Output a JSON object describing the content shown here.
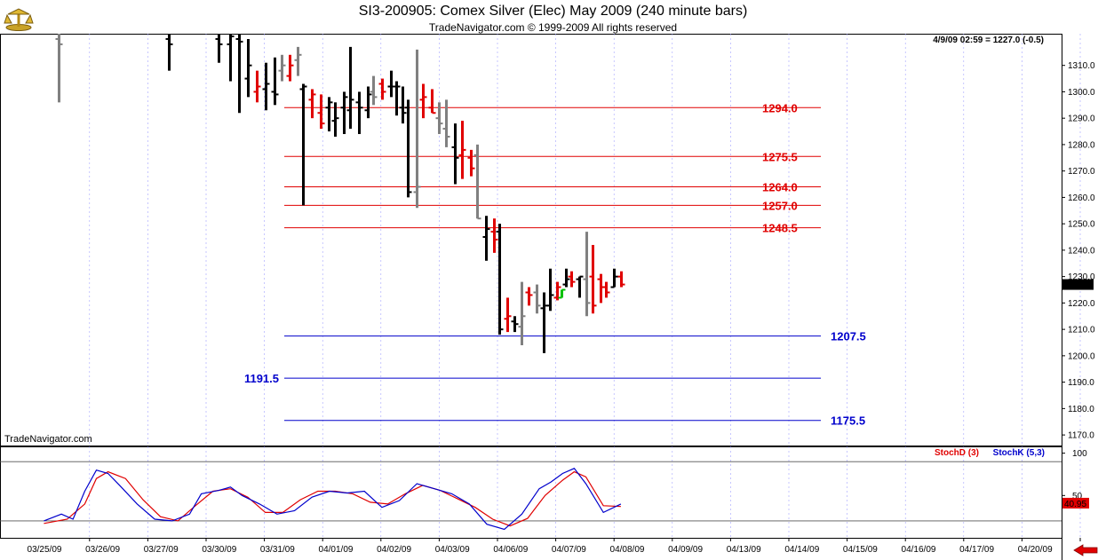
{
  "header": {
    "title": "SI3-200905:  Comex Silver (Elec) May 2009  (240 minute bars)",
    "copyright": "TradeNavigator.com © 1999-2009 All rights reserved",
    "quote": "4/9/09 02:59 = 1227.0 (-0.5)",
    "watermark": "TradeNavigator.com",
    "last_price": "1227.0"
  },
  "colors": {
    "up": "#000000",
    "down": "#e00000",
    "neutral": "#808080",
    "green": "#00c000",
    "resistance": "#e00000",
    "support": "#0000cc",
    "stochD": "#e00000",
    "stochK": "#0000cc"
  },
  "chart_data": [
    {
      "type": "bar",
      "subtype": "ohlc",
      "y_ticks": [
        "1170.0",
        "1180.0",
        "1190.0",
        "1200.0",
        "1210.0",
        "1220.0",
        "1230.0",
        "1240.0",
        "1250.0",
        "1260.0",
        "1270.0",
        "1280.0",
        "1290.0",
        "1300.0",
        "1310.0"
      ],
      "ylim": [
        1166,
        1322
      ],
      "x_labels": [
        "03/25/09",
        "03/26/09",
        "03/27/09",
        "03/30/09",
        "03/31/09",
        "04/01/09",
        "04/02/09",
        "04/03/09",
        "04/06/09",
        "04/07/09",
        "04/08/09",
        "04/09/09",
        "04/13/09",
        "04/14/09",
        "04/15/09",
        "04/16/09",
        "04/17/09",
        "04/20/09"
      ],
      "levels": [
        {
          "value": 1294.0,
          "label": "1294.0",
          "kind": "resistance"
        },
        {
          "value": 1275.5,
          "label": "1275.5",
          "kind": "resistance"
        },
        {
          "value": 1264.0,
          "label": "1264.0",
          "kind": "resistance"
        },
        {
          "value": 1257.0,
          "label": "1257.0",
          "kind": "resistance"
        },
        {
          "value": 1248.5,
          "label": "1248.5",
          "kind": "resistance"
        },
        {
          "value": 1207.5,
          "label": "1207.5",
          "kind": "support"
        },
        {
          "value": 1191.5,
          "label": "1191.5",
          "kind": "support"
        },
        {
          "value": 1175.5,
          "label": "1175.5",
          "kind": "support"
        }
      ],
      "bars": [
        {
          "x": 0.15,
          "h": 1322,
          "l": 1296,
          "o": 1320,
          "c": 1318,
          "col": "neutral"
        },
        {
          "x": 2.05,
          "h": 1322,
          "l": 1308,
          "o": 1320,
          "c": 1318,
          "col": "up"
        },
        {
          "x": 2.9,
          "h": 1322,
          "l": 1311,
          "o": 1320,
          "c": 1318,
          "col": "up"
        },
        {
          "x": 3.1,
          "h": 1322,
          "l": 1304,
          "o": 1318,
          "c": 1321,
          "col": "up"
        },
        {
          "x": 3.25,
          "h": 1322,
          "l": 1292,
          "o": 1320,
          "c": 1319,
          "col": "up"
        },
        {
          "x": 3.4,
          "h": 1320,
          "l": 1298,
          "o": 1305,
          "c": 1310,
          "col": "up"
        },
        {
          "x": 3.55,
          "h": 1308,
          "l": 1296,
          "o": 1300,
          "c": 1302,
          "col": "down"
        },
        {
          "x": 3.7,
          "h": 1311,
          "l": 1293,
          "o": 1301,
          "c": 1303,
          "col": "up"
        },
        {
          "x": 3.85,
          "h": 1313,
          "l": 1295,
          "o": 1300,
          "c": 1299,
          "col": "up"
        },
        {
          "x": 3.98,
          "h": 1314,
          "l": 1304,
          "o": 1308,
          "c": 1310,
          "col": "neutral"
        },
        {
          "x": 4.12,
          "h": 1314,
          "l": 1304,
          "o": 1306,
          "c": 1310,
          "col": "down"
        },
        {
          "x": 4.25,
          "h": 1317,
          "l": 1306,
          "o": 1312,
          "c": 1314,
          "col": "neutral"
        },
        {
          "x": 4.35,
          "h": 1303,
          "l": 1257,
          "o": 1301,
          "c": 1302,
          "col": "up"
        },
        {
          "x": 4.5,
          "h": 1301,
          "l": 1290,
          "o": 1297,
          "c": 1299,
          "col": "down"
        },
        {
          "x": 4.65,
          "h": 1299,
          "l": 1286,
          "o": 1292,
          "c": 1288,
          "col": "down"
        },
        {
          "x": 4.78,
          "h": 1298,
          "l": 1285,
          "o": 1294,
          "c": 1296,
          "col": "up"
        },
        {
          "x": 4.9,
          "h": 1296,
          "l": 1283,
          "o": 1289,
          "c": 1290,
          "col": "up"
        },
        {
          "x": 5.05,
          "h": 1300,
          "l": 1284,
          "o": 1294,
          "c": 1298,
          "col": "up"
        },
        {
          "x": 5.15,
          "h": 1317,
          "l": 1286,
          "o": 1293,
          "c": 1297,
          "col": "up"
        },
        {
          "x": 5.3,
          "h": 1300,
          "l": 1284,
          "o": 1296,
          "c": 1294,
          "col": "up"
        },
        {
          "x": 5.45,
          "h": 1302,
          "l": 1290,
          "o": 1293,
          "c": 1299,
          "col": "up"
        },
        {
          "x": 5.55,
          "h": 1306,
          "l": 1295,
          "o": 1300,
          "c": 1298,
          "col": "neutral"
        },
        {
          "x": 5.7,
          "h": 1305,
          "l": 1297,
          "o": 1303,
          "c": 1300,
          "col": "down"
        },
        {
          "x": 5.85,
          "h": 1308,
          "l": 1298,
          "o": 1302,
          "c": 1302,
          "col": "up"
        },
        {
          "x": 5.95,
          "h": 1304,
          "l": 1291,
          "o": 1302,
          "c": 1302,
          "col": "up"
        },
        {
          "x": 6.05,
          "h": 1302,
          "l": 1288,
          "o": 1294,
          "c": 1292,
          "col": "up"
        },
        {
          "x": 6.15,
          "h": 1297,
          "l": 1260,
          "o": 1294,
          "c": 1262,
          "col": "up"
        },
        {
          "x": 6.3,
          "h": 1316,
          "l": 1256,
          "o": 1262,
          "c": 1264,
          "col": "neutral"
        },
        {
          "x": 6.4,
          "h": 1303,
          "l": 1290,
          "o": 1297,
          "c": 1298,
          "col": "down"
        },
        {
          "x": 6.55,
          "h": 1301,
          "l": 1292,
          "o": 1294,
          "c": 1292,
          "col": "down"
        },
        {
          "x": 6.67,
          "h": 1296,
          "l": 1284,
          "o": 1290,
          "c": 1288,
          "col": "neutral"
        },
        {
          "x": 6.8,
          "h": 1297,
          "l": 1279,
          "o": 1286,
          "c": 1283,
          "col": "neutral"
        },
        {
          "x": 6.95,
          "h": 1288,
          "l": 1265,
          "o": 1279,
          "c": 1275,
          "col": "up"
        },
        {
          "x": 7.08,
          "h": 1289,
          "l": 1267,
          "o": 1276,
          "c": 1278,
          "col": "down"
        },
        {
          "x": 7.22,
          "h": 1278,
          "l": 1268,
          "o": 1275,
          "c": 1271,
          "col": "down"
        },
        {
          "x": 7.33,
          "h": 1280,
          "l": 1252,
          "o": 1276,
          "c": 1252,
          "col": "neutral"
        },
        {
          "x": 7.48,
          "h": 1253,
          "l": 1236,
          "o": 1245,
          "c": 1248,
          "col": "up"
        },
        {
          "x": 7.62,
          "h": 1252,
          "l": 1239,
          "o": 1247,
          "c": 1244,
          "col": "down"
        },
        {
          "x": 7.72,
          "h": 1250,
          "l": 1208,
          "o": 1247,
          "c": 1210,
          "col": "up"
        },
        {
          "x": 7.85,
          "h": 1222,
          "l": 1209,
          "o": 1214,
          "c": 1215,
          "col": "down"
        },
        {
          "x": 7.98,
          "h": 1215,
          "l": 1209,
          "o": 1213,
          "c": 1212,
          "col": "up"
        },
        {
          "x": 8.1,
          "h": 1228,
          "l": 1204,
          "o": 1211,
          "c": 1215,
          "col": "neutral"
        },
        {
          "x": 8.22,
          "h": 1226,
          "l": 1219,
          "o": 1224,
          "c": 1223,
          "col": "down"
        },
        {
          "x": 8.35,
          "h": 1227,
          "l": 1216,
          "o": 1224,
          "c": 1219,
          "col": "neutral"
        },
        {
          "x": 8.47,
          "h": 1224,
          "l": 1201,
          "o": 1218,
          "c": 1219,
          "col": "up"
        },
        {
          "x": 8.58,
          "h": 1233,
          "l": 1217,
          "o": 1219,
          "c": 1223,
          "col": "up"
        },
        {
          "x": 8.7,
          "h": 1228,
          "l": 1221,
          "o": 1222,
          "c": 1226,
          "col": "down"
        },
        {
          "x": 8.78,
          "h": 1225,
          "l": 1222,
          "o": 1222,
          "c": 1225,
          "col": "green"
        },
        {
          "x": 8.85,
          "h": 1233,
          "l": 1226,
          "o": 1227,
          "c": 1229,
          "col": "up"
        },
        {
          "x": 8.95,
          "h": 1232,
          "l": 1226,
          "o": 1230,
          "c": 1228,
          "col": "down"
        },
        {
          "x": 9.08,
          "h": 1230,
          "l": 1222,
          "o": 1229,
          "c": 1230,
          "col": "up"
        },
        {
          "x": 9.2,
          "h": 1247,
          "l": 1215,
          "o": 1229,
          "c": 1220,
          "col": "neutral"
        },
        {
          "x": 9.32,
          "h": 1242,
          "l": 1216,
          "o": 1230,
          "c": 1219,
          "col": "down"
        },
        {
          "x": 9.45,
          "h": 1231,
          "l": 1220,
          "o": 1229,
          "c": 1226,
          "col": "down"
        },
        {
          "x": 9.55,
          "h": 1228,
          "l": 1222,
          "o": 1226,
          "c": 1224,
          "col": "down"
        },
        {
          "x": 9.68,
          "h": 1233,
          "l": 1226,
          "o": 1226,
          "c": 1230,
          "col": "up"
        },
        {
          "x": 9.8,
          "h": 1232,
          "l": 1226,
          "o": 1230,
          "c": 1227,
          "col": "down"
        }
      ]
    },
    {
      "type": "line",
      "subtype": "stochastic",
      "legend": [
        "StochD (3)",
        "StochK (5,3)"
      ],
      "y_ticks": [
        "100",
        "50"
      ],
      "ylim": [
        0,
        108
      ],
      "reference_levels": [
        90,
        20
      ],
      "last_value": "40.95",
      "series": [
        {
          "name": "StochD (3)",
          "color": "stochD",
          "x": [
            -0.1,
            0.3,
            0.6,
            0.8,
            1.0,
            1.3,
            1.6,
            1.9,
            2.2,
            2.5,
            2.8,
            3.1,
            3.4,
            3.7,
            4.0,
            4.3,
            4.6,
            4.9,
            5.2,
            5.5,
            5.8,
            6.1,
            6.4,
            6.7,
            7.0,
            7.3,
            7.6,
            7.9,
            8.2,
            8.5,
            8.8,
            9.0,
            9.2,
            9.5,
            9.8
          ],
          "y": [
            17,
            22,
            40,
            70,
            78,
            70,
            45,
            25,
            20,
            38,
            55,
            58,
            48,
            30,
            30,
            45,
            55,
            55,
            52,
            42,
            40,
            52,
            62,
            56,
            46,
            36,
            22,
            14,
            23,
            50,
            68,
            78,
            72,
            38,
            37
          ]
        },
        {
          "name": "StochK (5,3)",
          "color": "stochK",
          "x": [
            -0.1,
            0.2,
            0.4,
            0.6,
            0.8,
            1.0,
            1.2,
            1.5,
            1.8,
            2.1,
            2.4,
            2.6,
            2.9,
            3.1,
            3.3,
            3.6,
            3.9,
            4.2,
            4.5,
            4.8,
            5.1,
            5.4,
            5.7,
            6.0,
            6.3,
            6.6,
            6.9,
            7.2,
            7.5,
            7.8,
            8.1,
            8.4,
            8.6,
            8.8,
            9.0,
            9.2,
            9.5,
            9.8
          ],
          "y": [
            20,
            28,
            22,
            55,
            80,
            76,
            62,
            40,
            22,
            20,
            28,
            52,
            56,
            60,
            50,
            40,
            28,
            32,
            48,
            55,
            53,
            55,
            36,
            44,
            64,
            58,
            52,
            40,
            16,
            10,
            28,
            58,
            66,
            76,
            82,
            64,
            30,
            40
          ]
        }
      ]
    }
  ]
}
